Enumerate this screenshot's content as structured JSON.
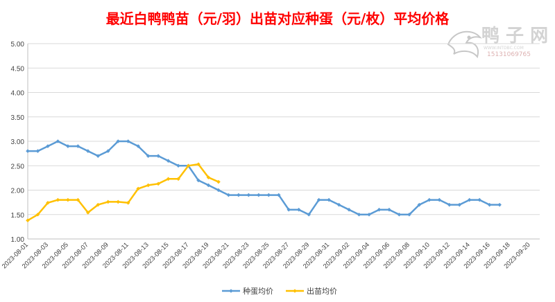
{
  "chart_data": {
    "type": "line",
    "title": "最近白鸭鸭苗（元/羽）出苗对应种蛋（元/枚）平均价格",
    "xlabel": "",
    "ylabel": "",
    "ylim": [
      1.0,
      5.0
    ],
    "y_ticks": [
      "1.00",
      "1.50",
      "2.00",
      "2.50",
      "3.00",
      "3.50",
      "4.00",
      "4.50",
      "5.00"
    ],
    "x_range": [
      "2023-08-01",
      "2023-09-21"
    ],
    "x_tick_labels": [
      "2023-08-01",
      "2023-08-03",
      "2023-08-05",
      "2023-08-07",
      "2023-08-09",
      "2023-08-11",
      "2023-08-13",
      "2023-08-15",
      "2023-08-17",
      "2023-08-19",
      "2023-08-21",
      "2023-08-23",
      "2023-08-25",
      "2023-08-27",
      "2023-08-29",
      "2023-08-31",
      "2023-09-02",
      "2023-09-04",
      "2023-09-06",
      "2023-09-08",
      "2023-09-10",
      "2023-09-12",
      "2023-09-14",
      "2023-09-16",
      "2023-09-18",
      "2023-09-20"
    ],
    "grid": "horizontal",
    "legend_position": "bottom-center",
    "series": [
      {
        "name": "种蛋均价",
        "color": "#5b9bd5",
        "points": [
          [
            "2023-08-01",
            2.8
          ],
          [
            "2023-08-02",
            2.8
          ],
          [
            "2023-08-03",
            2.9
          ],
          [
            "2023-08-04",
            3.0
          ],
          [
            "2023-08-05",
            2.9
          ],
          [
            "2023-08-06",
            2.9
          ],
          [
            "2023-08-07",
            2.8
          ],
          [
            "2023-08-08",
            2.7
          ],
          [
            "2023-08-09",
            2.8
          ],
          [
            "2023-08-10",
            3.0
          ],
          [
            "2023-08-11",
            3.0
          ],
          [
            "2023-08-12",
            2.9
          ],
          [
            "2023-08-13",
            2.7
          ],
          [
            "2023-08-14",
            2.7
          ],
          [
            "2023-08-15",
            2.6
          ],
          [
            "2023-08-16",
            2.5
          ],
          [
            "2023-08-17",
            2.5
          ],
          [
            "2023-08-18",
            2.2
          ],
          [
            "2023-08-19",
            2.1
          ],
          [
            "2023-08-20",
            2.0
          ],
          [
            "2023-08-21",
            1.9
          ],
          [
            "2023-08-22",
            1.9
          ],
          [
            "2023-08-23",
            1.9
          ],
          [
            "2023-08-24",
            1.9
          ],
          [
            "2023-08-25",
            1.9
          ],
          [
            "2023-08-26",
            1.9
          ],
          [
            "2023-08-27",
            1.6
          ],
          [
            "2023-08-28",
            1.6
          ],
          [
            "2023-08-29",
            1.5
          ],
          [
            "2023-08-30",
            1.8
          ],
          [
            "2023-08-31",
            1.8
          ],
          [
            "2023-09-01",
            1.7
          ],
          [
            "2023-09-02",
            1.6
          ],
          [
            "2023-09-03",
            1.5
          ],
          [
            "2023-09-04",
            1.5
          ],
          [
            "2023-09-05",
            1.6
          ],
          [
            "2023-09-06",
            1.6
          ],
          [
            "2023-09-07",
            1.5
          ],
          [
            "2023-09-08",
            1.5
          ],
          [
            "2023-09-09",
            1.7
          ],
          [
            "2023-09-10",
            1.8
          ],
          [
            "2023-09-11",
            1.8
          ],
          [
            "2023-09-12",
            1.7
          ],
          [
            "2023-09-13",
            1.7
          ],
          [
            "2023-09-14",
            1.8
          ],
          [
            "2023-09-15",
            1.8
          ],
          [
            "2023-09-16",
            1.7
          ],
          [
            "2023-09-17",
            1.7
          ]
        ]
      },
      {
        "name": "出苗均价",
        "color": "#ffc000",
        "points": [
          [
            "2023-08-01",
            1.38
          ],
          [
            "2023-08-02",
            1.5
          ],
          [
            "2023-08-03",
            1.74
          ],
          [
            "2023-08-04",
            1.8
          ],
          [
            "2023-08-05",
            1.8
          ],
          [
            "2023-08-06",
            1.8
          ],
          [
            "2023-08-07",
            1.54
          ],
          [
            "2023-08-08",
            1.7
          ],
          [
            "2023-08-09",
            1.76
          ],
          [
            "2023-08-10",
            1.76
          ],
          [
            "2023-08-11",
            1.74
          ],
          [
            "2023-08-12",
            2.03
          ],
          [
            "2023-08-13",
            2.1
          ],
          [
            "2023-08-14",
            2.13
          ],
          [
            "2023-08-15",
            2.23
          ],
          [
            "2023-08-16",
            2.23
          ],
          [
            "2023-08-17",
            2.5
          ],
          [
            "2023-08-18",
            2.53
          ],
          [
            "2023-08-19",
            2.26
          ],
          [
            "2023-08-20",
            2.17
          ]
        ]
      }
    ]
  },
  "watermark": {
    "brand_text": "鸭 子 网",
    "site_text": "WWW.INTDBC.COM",
    "phone_text": "15131069765",
    "icon": "duck-logo-icon"
  }
}
